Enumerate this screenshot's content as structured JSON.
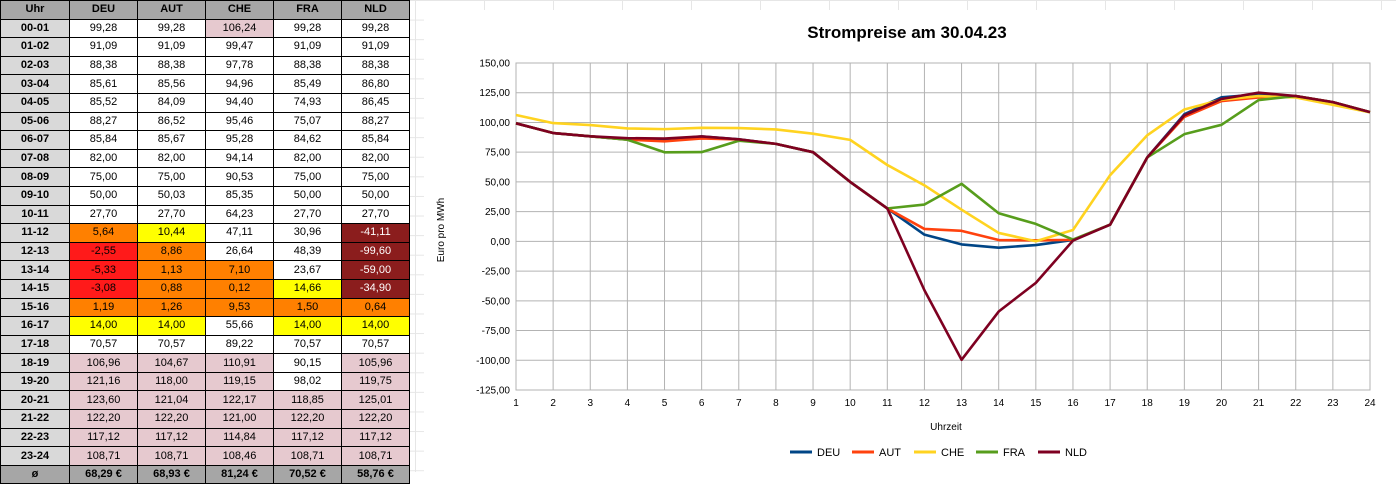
{
  "table": {
    "headers": [
      "Uhr",
      "DEU",
      "AUT",
      "CHE",
      "FRA",
      "NLD"
    ],
    "rows": [
      {
        "hour": "00-01",
        "values": [
          "99,28",
          "99,28",
          "106,24",
          "99,28",
          "99,28"
        ],
        "colors": [
          "white",
          "white",
          "pink",
          "white",
          "white"
        ]
      },
      {
        "hour": "01-02",
        "values": [
          "91,09",
          "91,09",
          "99,47",
          "91,09",
          "91,09"
        ],
        "colors": [
          "white",
          "white",
          "white",
          "white",
          "white"
        ]
      },
      {
        "hour": "02-03",
        "values": [
          "88,38",
          "88,38",
          "97,78",
          "88,38",
          "88,38"
        ],
        "colors": [
          "white",
          "white",
          "white",
          "white",
          "white"
        ]
      },
      {
        "hour": "03-04",
        "values": [
          "85,61",
          "85,56",
          "94,96",
          "85,49",
          "86,80"
        ],
        "colors": [
          "white",
          "white",
          "white",
          "white",
          "white"
        ]
      },
      {
        "hour": "04-05",
        "values": [
          "85,52",
          "84,09",
          "94,40",
          "74,93",
          "86,45"
        ],
        "colors": [
          "white",
          "white",
          "white",
          "white",
          "white"
        ]
      },
      {
        "hour": "05-06",
        "values": [
          "88,27",
          "86,52",
          "95,46",
          "75,07",
          "88,27"
        ],
        "colors": [
          "white",
          "white",
          "white",
          "white",
          "white"
        ]
      },
      {
        "hour": "06-07",
        "values": [
          "85,84",
          "85,67",
          "95,28",
          "84,62",
          "85,84"
        ],
        "colors": [
          "white",
          "white",
          "white",
          "white",
          "white"
        ]
      },
      {
        "hour": "07-08",
        "values": [
          "82,00",
          "82,00",
          "94,14",
          "82,00",
          "82,00"
        ],
        "colors": [
          "white",
          "white",
          "white",
          "white",
          "white"
        ]
      },
      {
        "hour": "08-09",
        "values": [
          "75,00",
          "75,00",
          "90,53",
          "75,00",
          "75,00"
        ],
        "colors": [
          "white",
          "white",
          "white",
          "white",
          "white"
        ]
      },
      {
        "hour": "09-10",
        "values": [
          "50,00",
          "50,03",
          "85,35",
          "50,00",
          "50,00"
        ],
        "colors": [
          "white",
          "white",
          "white",
          "white",
          "white"
        ]
      },
      {
        "hour": "10-11",
        "values": [
          "27,70",
          "27,70",
          "64,23",
          "27,70",
          "27,70"
        ],
        "colors": [
          "white",
          "white",
          "white",
          "white",
          "white"
        ]
      },
      {
        "hour": "11-12",
        "values": [
          "5,64",
          "10,44",
          "47,11",
          "30,96",
          "-41,11"
        ],
        "colors": [
          "orange",
          "yellow",
          "white",
          "white",
          "dark"
        ]
      },
      {
        "hour": "12-13",
        "values": [
          "-2,55",
          "8,86",
          "26,64",
          "48,39",
          "-99,60"
        ],
        "colors": [
          "red",
          "orange",
          "white",
          "white",
          "dark"
        ]
      },
      {
        "hour": "13-14",
        "values": [
          "-5,33",
          "1,13",
          "7,10",
          "23,67",
          "-59,00"
        ],
        "colors": [
          "red",
          "orange",
          "orange",
          "white",
          "dark"
        ]
      },
      {
        "hour": "14-15",
        "values": [
          "-3,08",
          "0,88",
          "0,12",
          "14,66",
          "-34,90"
        ],
        "colors": [
          "red",
          "orange",
          "orange",
          "yellow",
          "dark"
        ]
      },
      {
        "hour": "15-16",
        "values": [
          "1,19",
          "1,26",
          "9,53",
          "1,50",
          "0,64"
        ],
        "colors": [
          "orange",
          "orange",
          "orange",
          "orange",
          "orange"
        ]
      },
      {
        "hour": "16-17",
        "values": [
          "14,00",
          "14,00",
          "55,66",
          "14,00",
          "14,00"
        ],
        "colors": [
          "yellow",
          "yellow",
          "white",
          "yellow",
          "yellow"
        ]
      },
      {
        "hour": "17-18",
        "values": [
          "70,57",
          "70,57",
          "89,22",
          "70,57",
          "70,57"
        ],
        "colors": [
          "white",
          "white",
          "white",
          "white",
          "white"
        ]
      },
      {
        "hour": "18-19",
        "values": [
          "106,96",
          "104,67",
          "110,91",
          "90,15",
          "105,96"
        ],
        "colors": [
          "pink",
          "pink",
          "pink",
          "white",
          "pink"
        ]
      },
      {
        "hour": "19-20",
        "values": [
          "121,16",
          "118,00",
          "119,15",
          "98,02",
          "119,75"
        ],
        "colors": [
          "pink",
          "pink",
          "pink",
          "white",
          "pink"
        ]
      },
      {
        "hour": "20-21",
        "values": [
          "123,60",
          "121,04",
          "122,17",
          "118,85",
          "125,01"
        ],
        "colors": [
          "pink",
          "pink",
          "pink",
          "pink",
          "pink"
        ]
      },
      {
        "hour": "21-22",
        "values": [
          "122,20",
          "122,20",
          "121,00",
          "122,20",
          "122,20"
        ],
        "colors": [
          "pink",
          "pink",
          "pink",
          "pink",
          "pink"
        ]
      },
      {
        "hour": "22-23",
        "values": [
          "117,12",
          "117,12",
          "114,84",
          "117,12",
          "117,12"
        ],
        "colors": [
          "pink",
          "pink",
          "pink",
          "pink",
          "pink"
        ]
      },
      {
        "hour": "23-24",
        "values": [
          "108,71",
          "108,71",
          "108,46",
          "108,71",
          "108,71"
        ],
        "colors": [
          "pink",
          "pink",
          "pink",
          "pink",
          "pink"
        ]
      }
    ],
    "average": {
      "label": "ø",
      "values": [
        "68,29 €",
        "68,93 €",
        "81,24 €",
        "70,52 €",
        "58,76 €"
      ]
    }
  },
  "chart_data": {
    "type": "line",
    "title": "Strompreise am 30.04.23",
    "xlabel": "Uhrzeit",
    "ylabel": "Euro pro MWh",
    "x": [
      1,
      2,
      3,
      4,
      5,
      6,
      7,
      8,
      9,
      10,
      11,
      12,
      13,
      14,
      15,
      16,
      17,
      18,
      19,
      20,
      21,
      22,
      23,
      24
    ],
    "ylim": [
      -125,
      150
    ],
    "yticks": [
      "150,00",
      "125,00",
      "100,00",
      "75,00",
      "50,00",
      "25,00",
      "0,00",
      "-25,00",
      "-50,00",
      "-75,00",
      "-100,00",
      "-125,00"
    ],
    "ytick_values": [
      150,
      125,
      100,
      75,
      50,
      25,
      0,
      -25,
      -50,
      -75,
      -100,
      -125
    ],
    "grid": true,
    "legend": "bottom",
    "series": [
      {
        "name": "DEU",
        "color": "#004586",
        "values": [
          99.28,
          91.09,
          88.38,
          85.61,
          85.52,
          88.27,
          85.84,
          82.0,
          75.0,
          50.0,
          27.7,
          5.64,
          -2.55,
          -5.33,
          -3.08,
          1.19,
          14.0,
          70.57,
          106.96,
          121.16,
          123.6,
          122.2,
          117.12,
          108.71
        ]
      },
      {
        "name": "AUT",
        "color": "#ff420e",
        "values": [
          99.28,
          91.09,
          88.38,
          85.56,
          84.09,
          86.52,
          85.67,
          82.0,
          75.0,
          50.03,
          27.7,
          10.44,
          8.86,
          1.13,
          0.88,
          1.26,
          14.0,
          70.57,
          104.67,
          118.0,
          121.04,
          122.2,
          117.12,
          108.71
        ]
      },
      {
        "name": "CHE",
        "color": "#ffd320",
        "values": [
          106.24,
          99.47,
          97.78,
          94.96,
          94.4,
          95.46,
          95.28,
          94.14,
          90.53,
          85.35,
          64.23,
          47.11,
          26.64,
          7.1,
          0.12,
          9.53,
          55.66,
          89.22,
          110.91,
          119.15,
          122.17,
          121.0,
          114.84,
          108.46
        ]
      },
      {
        "name": "FRA",
        "color": "#579d1c",
        "values": [
          99.28,
          91.09,
          88.38,
          85.49,
          74.93,
          75.07,
          84.62,
          82.0,
          75.0,
          50.0,
          27.7,
          30.96,
          48.39,
          23.67,
          14.66,
          1.5,
          14.0,
          70.57,
          90.15,
          98.02,
          118.85,
          122.2,
          117.12,
          108.71
        ]
      },
      {
        "name": "NLD",
        "color": "#7e0021",
        "values": [
          99.28,
          91.09,
          88.38,
          86.8,
          86.45,
          88.27,
          85.84,
          82.0,
          75.0,
          50.0,
          27.7,
          -41.11,
          -99.6,
          -59.0,
          -34.9,
          0.64,
          14.0,
          70.57,
          105.96,
          119.75,
          125.01,
          122.2,
          117.12,
          108.71
        ]
      }
    ]
  }
}
